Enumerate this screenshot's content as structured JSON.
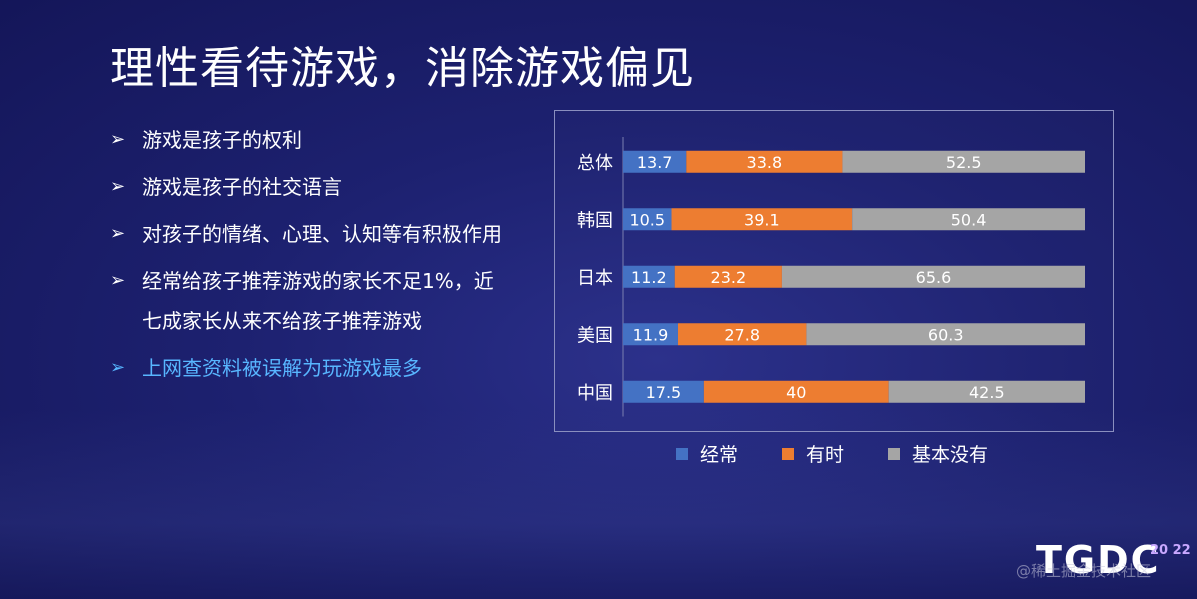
{
  "slide": {
    "title": "理性看待游戏，消除游戏偏见",
    "bullets": [
      {
        "text": "游戏是孩子的权利",
        "highlight": false
      },
      {
        "text": "游戏是孩子的社交语言",
        "highlight": false
      },
      {
        "text": "对孩子的情绪、心理、认知等有积极作用",
        "highlight": false
      },
      {
        "text": "经常给孩子推荐游戏的家长不足1%，近",
        "highlight": false
      },
      {
        "text": "七成家长从来不给孩子推荐游戏",
        "highlight": false,
        "continuation": true
      },
      {
        "text": "上网查资料被误解为玩游戏最多",
        "highlight": true
      }
    ],
    "bullet_icon": "arrow-bullet-icon",
    "highlight_color": "#58b6ff",
    "logo_text": "TGDC",
    "logo_year": "20 22",
    "watermark": "@稀土掘金技术社区"
  },
  "chart_data": {
    "type": "bar",
    "orientation": "horizontal",
    "stacked": true,
    "categories": [
      "总体",
      "韩国",
      "日本",
      "美国",
      "中国"
    ],
    "series": [
      {
        "name": "经常",
        "color": "#4472c4",
        "values": [
          13.7,
          10.5,
          11.2,
          11.9,
          17.5
        ]
      },
      {
        "name": "有时",
        "color": "#ed7d31",
        "values": [
          33.8,
          39.1,
          23.2,
          27.8,
          40
        ]
      },
      {
        "name": "基本没有",
        "color": "#a5a5a5",
        "values": [
          52.5,
          50.4,
          65.6,
          60.3,
          42.5
        ]
      }
    ],
    "data_labels": [
      [
        "13.7",
        "10.5",
        "11.2",
        "11.9",
        "17.5"
      ],
      [
        "33.8",
        "39.1",
        "23.2",
        "27.8",
        "40"
      ],
      [
        "52.5",
        "50.4",
        "65.6",
        "60.3",
        "42.5"
      ]
    ],
    "xlim": [
      0,
      100
    ],
    "x_ticks": [
      "0%",
      "10%",
      "20%",
      "30%",
      "40%",
      "50%",
      "60%",
      "70%",
      "80%",
      "90%",
      "100%"
    ],
    "legend_position": "bottom",
    "grid": false
  }
}
